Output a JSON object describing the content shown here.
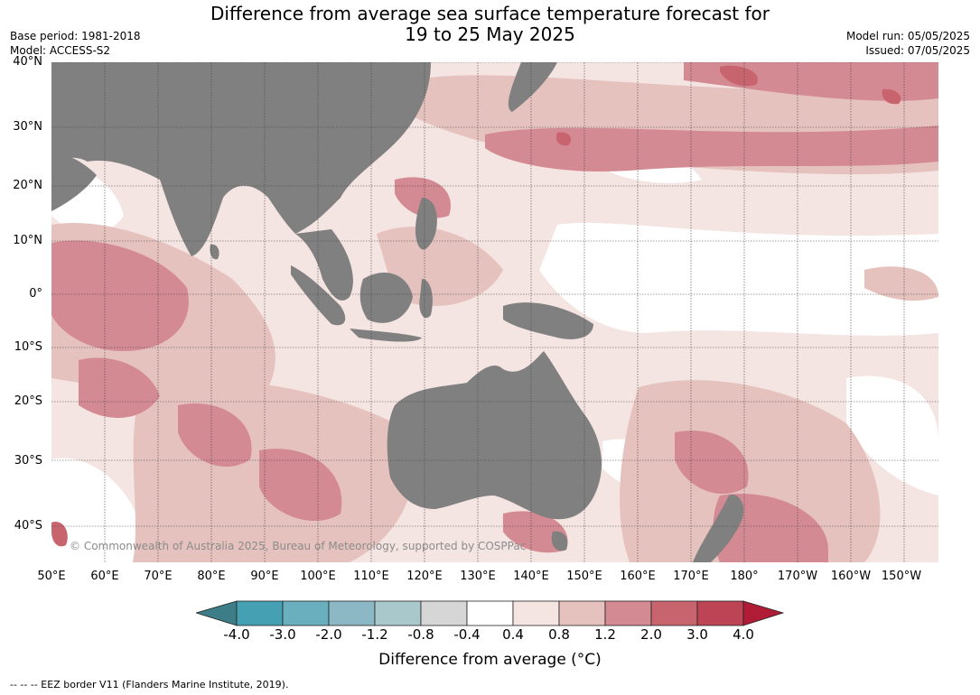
{
  "title": {
    "line1": "Difference from average sea surface temperature forecast for",
    "line2": "19 to 25 May 2025"
  },
  "meta": {
    "base_period": "Base period: 1981-2018",
    "model": "Model: ACCESS-S2",
    "model_run": "Model run: 05/05/2025",
    "issued": "Issued: 07/05/2025"
  },
  "map": {
    "lat_labels": [
      "40°N",
      "30°N",
      "20°N",
      "10°N",
      "0°",
      "10°S",
      "20°S",
      "30°S",
      "40°S"
    ],
    "lon_labels": [
      "50°E",
      "60°E",
      "70°E",
      "80°E",
      "90°E",
      "100°E",
      "110°E",
      "120°E",
      "130°E",
      "140°E",
      "150°E",
      "160°E",
      "170°E",
      "180°",
      "170°W",
      "160°W",
      "150°W"
    ],
    "copyright": "© Commonwealth of Australia 2025, Bureau of Meteorology, supported by COSPPac",
    "land_color": "#808080"
  },
  "legend": {
    "tick_labels": [
      "-4.0",
      "-3.0",
      "-2.0",
      "-1.2",
      "-0.8",
      "-0.4",
      "0.4",
      "0.8",
      "1.2",
      "2.0",
      "3.0",
      "4.0"
    ],
    "colors": [
      "#3d7d88",
      "#46a0b4",
      "#6aafbe",
      "#8bb8c4",
      "#a9c8cc",
      "#d6d6d6",
      "#ffffff",
      "#f4e4e2",
      "#e6c2be",
      "#d48a92",
      "#c8646e",
      "#bc4454",
      "#b01c36"
    ],
    "label": "Difference from average (°C)"
  },
  "footnote": "-- -- -- EEZ border V11 (Flanders Marine Institute, 2019)."
}
